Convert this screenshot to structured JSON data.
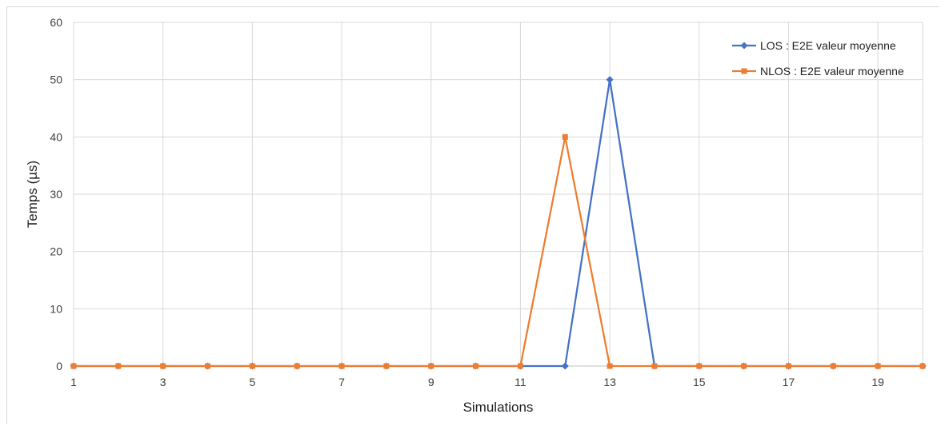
{
  "chart_data": {
    "type": "line",
    "xlabel": "Simulations",
    "ylabel": "Temps (µs)",
    "x": [
      1,
      2,
      3,
      4,
      5,
      6,
      7,
      8,
      9,
      10,
      11,
      12,
      13,
      14,
      15,
      16,
      17,
      18,
      19,
      20
    ],
    "xlim": [
      1,
      20
    ],
    "ylim": [
      0,
      60
    ],
    "x_tick_labels": [
      "1",
      "3",
      "5",
      "7",
      "9",
      "11",
      "13",
      "15",
      "17",
      "19"
    ],
    "y_tick_labels": [
      "0",
      "10",
      "20",
      "30",
      "40",
      "50",
      "60"
    ],
    "grid": true,
    "legend_position": "top-right",
    "series": [
      {
        "name": "LOS : E2E valeur moyenne",
        "color": "#4472c4",
        "marker": "diamond",
        "values": [
          0,
          0,
          0,
          0,
          0,
          0,
          0,
          0,
          0,
          0,
          0,
          0,
          50,
          0,
          0,
          0,
          0,
          0,
          0,
          0
        ]
      },
      {
        "name": "NLOS : E2E valeur moyenne",
        "color": "#ed7d31",
        "marker": "square",
        "values": [
          0,
          0,
          0,
          0,
          0,
          0,
          0,
          0,
          0,
          0,
          0,
          40,
          0,
          0,
          0,
          0,
          0,
          0,
          0,
          0
        ]
      }
    ]
  }
}
